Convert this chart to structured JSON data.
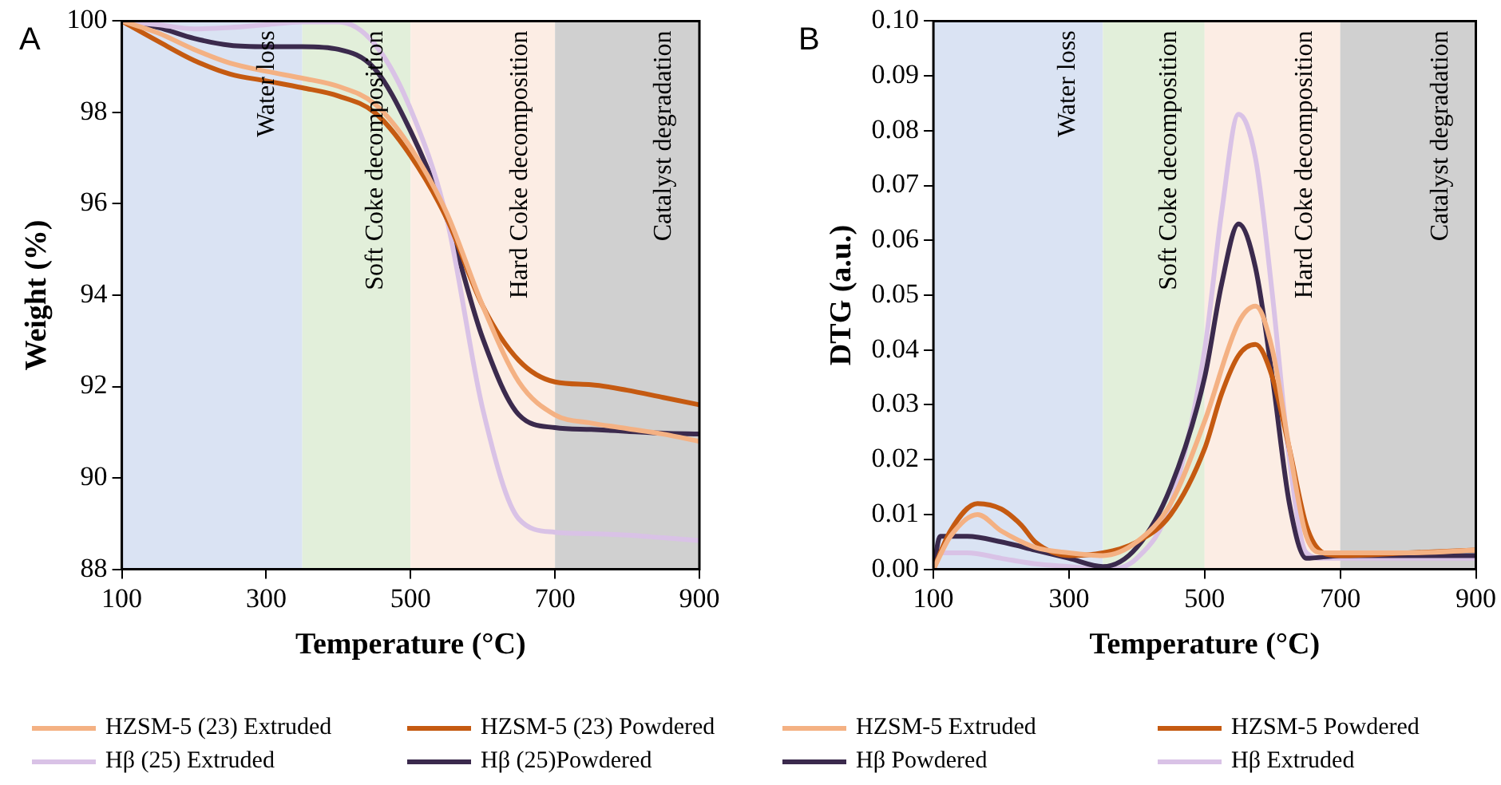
{
  "chart_data": [
    {
      "type": "line",
      "title": "A",
      "xlabel": "Temperature (°C)",
      "ylabel": "Weight (%)",
      "xlim": [
        100,
        900
      ],
      "xticks": [
        100,
        300,
        500,
        700,
        900
      ],
      "ylim": [
        88,
        100
      ],
      "yticks": [
        88,
        90,
        92,
        94,
        96,
        98,
        100
      ],
      "grid": false,
      "legend": "bottom",
      "marker": "none",
      "line_style": "solid",
      "x": [
        100,
        150,
        200,
        250,
        300,
        350,
        400,
        450,
        500,
        550,
        600,
        650,
        700,
        750,
        800,
        850,
        900
      ],
      "bands": [
        {
          "axis": "x",
          "from": 100,
          "to": 350,
          "label": "Water loss",
          "color": "#dae3f3"
        },
        {
          "axis": "x",
          "from": 350,
          "to": 500,
          "label": "Soft Coke decomposition",
          "color": "#e2efda"
        },
        {
          "axis": "x",
          "from": 500,
          "to": 700,
          "label": "Hard Coke decomposition",
          "color": "#fcede4"
        },
        {
          "axis": "x",
          "from": 700,
          "to": 900,
          "label": "Catalyst degradation",
          "color": "#d0d0d0"
        }
      ],
      "series": [
        {
          "name": "HZSM-5 (23) Extruded",
          "color": "#f4b183",
          "values": [
            100,
            99.74,
            99.38,
            99.08,
            98.9,
            98.75,
            98.57,
            98.19,
            97.23,
            95.8,
            93.76,
            92.1,
            91.38,
            91.2,
            91.08,
            90.96,
            90.8
          ]
        },
        {
          "name": "HZSM-5 (23) Powdered",
          "color": "#c55a11",
          "values": [
            100,
            99.56,
            99.14,
            98.84,
            98.69,
            98.54,
            98.36,
            98.0,
            97.05,
            95.68,
            93.76,
            92.57,
            92.1,
            92.04,
            91.92,
            91.76,
            91.6
          ]
        },
        {
          "name": "Hβ (25) Extruded",
          "color": "#d9c2e6",
          "values": [
            100,
            99.92,
            99.83,
            99.86,
            99.92,
            99.98,
            99.98,
            99.5,
            98.07,
            95.68,
            91.5,
            89.1,
            88.81,
            88.78,
            88.75,
            88.69,
            88.63
          ]
        },
        {
          "name": "Hβ (25)Powdered",
          "color": "#3b2a4d",
          "values": [
            100,
            99.86,
            99.62,
            99.47,
            99.44,
            99.44,
            99.38,
            98.96,
            97.59,
            95.68,
            93.05,
            91.38,
            91.1,
            91.06,
            91.02,
            90.98,
            90.96
          ]
        }
      ]
    },
    {
      "type": "line",
      "title": "B",
      "xlabel": "Temperature (°C)",
      "ylabel": "DTG (a.u.)",
      "xlim": [
        100,
        900
      ],
      "xticks": [
        100,
        300,
        500,
        700,
        900
      ],
      "ylim": [
        0,
        0.1
      ],
      "yticks": [
        {
          "value": 0,
          "label": "0.00"
        },
        0.01,
        0.02,
        0.03,
        0.04,
        0.05,
        0.06,
        0.07,
        0.08,
        0.09,
        {
          "value": 0.1,
          "label": "0.10"
        }
      ],
      "grid": false,
      "legend": "bottom",
      "marker": "none",
      "line_style": "solid",
      "bands": [
        {
          "axis": "x",
          "from": 100,
          "to": 350,
          "label": "Water loss",
          "color": "#dae3f3"
        },
        {
          "axis": "x",
          "from": 350,
          "to": 500,
          "label": "Soft Coke decomposition",
          "color": "#e2efda"
        },
        {
          "axis": "x",
          "from": 500,
          "to": 700,
          "label": "Hard Coke decomposition",
          "color": "#fcede4"
        },
        {
          "axis": "x",
          "from": 700,
          "to": 900,
          "label": "Catalyst degradation",
          "color": "#d0d0d0"
        }
      ],
      "series": [
        {
          "name": "HZSM-5 Extruded",
          "color": "#f4b183",
          "x": [
            100,
            125,
            165,
            200,
            250,
            300,
            350,
            400,
            450,
            500,
            550,
            575,
            600,
            625,
            650,
            675,
            700,
            800,
            900
          ],
          "values": [
            0,
            0.006,
            0.01,
            0.007,
            0.004,
            0.003,
            0.0025,
            0.005,
            0.012,
            0.027,
            0.045,
            0.048,
            0.04,
            0.022,
            0.006,
            0.003,
            0.003,
            0.003,
            0.0035
          ]
        },
        {
          "name": "HZSM-5 Powdered",
          "color": "#c55a11",
          "x": [
            100,
            125,
            165,
            200,
            230,
            250,
            300,
            350,
            400,
            450,
            500,
            525,
            550,
            575,
            600,
            625,
            650,
            675,
            700,
            800,
            900
          ],
          "values": [
            0,
            0.007,
            0.012,
            0.011,
            0.008,
            0.005,
            0.0025,
            0.003,
            0.005,
            0.01,
            0.022,
            0.032,
            0.039,
            0.041,
            0.035,
            0.022,
            0.008,
            0.003,
            0.0025,
            0.003,
            0.0035
          ]
        },
        {
          "name": "Hβ Powdered",
          "color": "#3b2a4d",
          "x": [
            100,
            110,
            150,
            200,
            250,
            300,
            350,
            400,
            450,
            500,
            525,
            550,
            575,
            600,
            625,
            650,
            700,
            800,
            900
          ],
          "values": [
            0,
            0.006,
            0.006,
            0.005,
            0.0035,
            0.002,
            0.0005,
            0.004,
            0.015,
            0.035,
            0.052,
            0.063,
            0.055,
            0.035,
            0.012,
            0.002,
            0.0025,
            0.0025,
            0.0025
          ]
        },
        {
          "name": "Hβ Extruded",
          "color": "#d9c2e6",
          "x": [
            100,
            110,
            150,
            200,
            250,
            300,
            350,
            400,
            450,
            500,
            525,
            550,
            575,
            600,
            625,
            650,
            675,
            700,
            800,
            900
          ],
          "values": [
            0,
            0.003,
            0.003,
            0.002,
            0.001,
            0.0005,
            0,
            0.002,
            0.012,
            0.04,
            0.065,
            0.083,
            0.075,
            0.05,
            0.02,
            0.003,
            0.002,
            0.002,
            0.002,
            0.002
          ]
        }
      ]
    }
  ]
}
